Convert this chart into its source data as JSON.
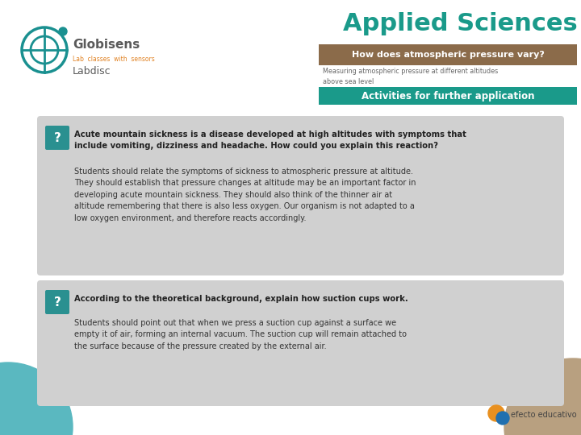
{
  "bg_color": "#ffffff",
  "title_applied": "Applied Sciences",
  "title_applied_color": "#1a9a8a",
  "title_bar_color": "#8B6B4A",
  "title_bar_text": "How does atmospheric pressure vary?",
  "subtitle_text": "Measuring atmospheric pressure at different altitudes\nabove sea level",
  "activities_bar_color": "#1a9a8a",
  "activities_text": "Activities for further application",
  "question_bg": "#d0d0d0",
  "question_mark_bg": "#2a9090",
  "question_mark_text": "?",
  "q1_question": "Acute mountain sickness is a disease developed at high altitudes with symptoms that\ninclude vomiting, dizziness and headache. How could you explain this reaction?",
  "q1_answer": "Students should relate the symptoms of sickness to atmospheric pressure at altitude.\nThey should establish that pressure changes at altitude may be an important factor in\ndeveloping acute mountain sickness. They should also think of the thinner air at\naltitude remembering that there is also less oxygen. Our organism is not adapted to a\nlow oxygen environment, and therefore reacts accordingly.",
  "q2_question": "According to the theoretical background, explain how suction cups work.",
  "q2_answer": "Students should point out that when we press a suction cup against a surface we\nempty it of air, forming an internal vacuum. The suction cup will remain attached to\nthe surface because of the pressure created by the external air.",
  "corner_teal_color": "#5ab8c0",
  "corner_brown_color": "#b8a080",
  "efecto_text": "efecto educativo",
  "globisens_color": "#5a5a5a",
  "globisens_logo_color": "#1a9090",
  "globisens_sub_color": "#e08020",
  "labdisc_color": "#5a5a5a"
}
